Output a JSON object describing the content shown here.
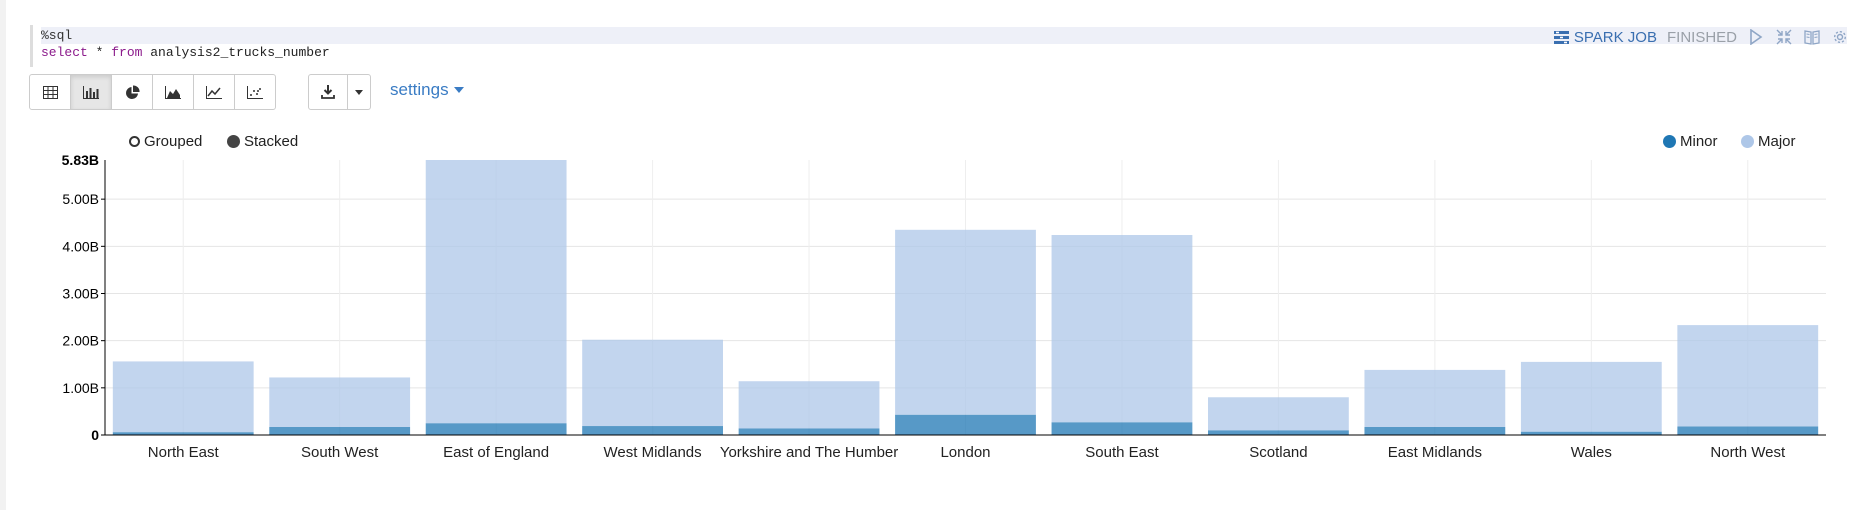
{
  "code": {
    "line1": "%sql",
    "line2_keyword_select": "select",
    "line2_star": " * ",
    "line2_keyword_from": "from",
    "line2_table": " analysis2_trucks_number"
  },
  "status": {
    "job_label": "SPARK JOB",
    "state": "FINISHED"
  },
  "toolbar": {
    "buttons": [
      {
        "icon": "table-icon",
        "active": false
      },
      {
        "icon": "bar-chart-icon",
        "active": true
      },
      {
        "icon": "pie-chart-icon",
        "active": false
      },
      {
        "icon": "area-chart-icon",
        "active": false
      },
      {
        "icon": "line-chart-icon",
        "active": false
      },
      {
        "icon": "scatter-chart-icon",
        "active": false
      }
    ],
    "settings_label": "settings"
  },
  "mode": {
    "grouped_label": "Grouped",
    "stacked_label": "Stacked",
    "selected": "Stacked"
  },
  "colors": {
    "minor": "#1f77b4",
    "major": "#aec7e8"
  },
  "chart_data": {
    "type": "bar",
    "stacked": true,
    "categories": [
      "North East",
      "South West",
      "East of England",
      "West Midlands",
      "Yorkshire and The Humber",
      "London",
      "South East",
      "Scotland",
      "East Midlands",
      "Wales",
      "North West"
    ],
    "series": [
      {
        "name": "Minor",
        "values": [
          0.06,
          0.17,
          0.25,
          0.19,
          0.14,
          0.43,
          0.27,
          0.1,
          0.17,
          0.07,
          0.18
        ]
      },
      {
        "name": "Major",
        "values": [
          1.5,
          1.05,
          5.58,
          1.83,
          1.0,
          3.92,
          3.97,
          0.7,
          1.21,
          1.48,
          2.15
        ]
      }
    ],
    "ylim": [
      0,
      5.83
    ],
    "yticks": [
      0,
      1,
      2,
      3,
      4,
      5
    ],
    "ytick_labels": [
      "0",
      "1.00B",
      "2.00B",
      "3.00B",
      "4.00B",
      "5.00B"
    ],
    "ymax_label": "5.83B",
    "legend_position": "top-right",
    "grid": true
  }
}
